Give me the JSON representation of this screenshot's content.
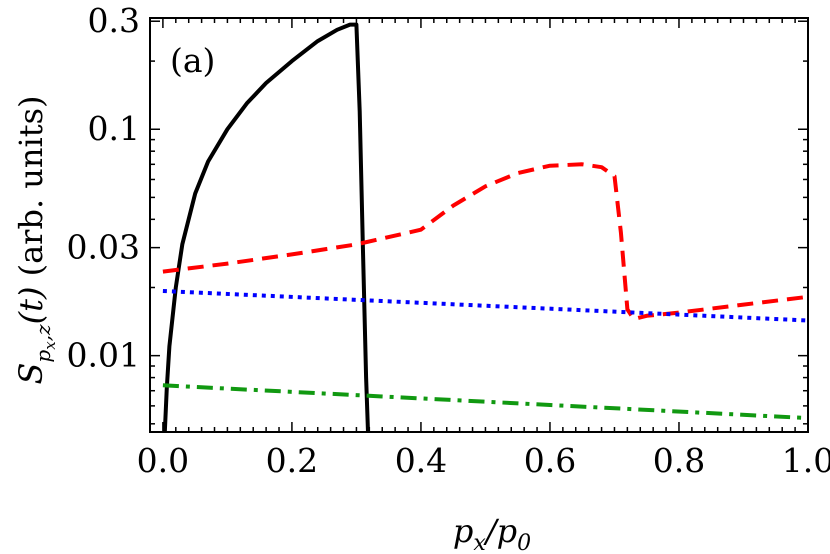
{
  "chart_data": {
    "type": "line",
    "panel_label": "(a)",
    "xlabel": "p_x/p_0",
    "ylabel": "S_{p_x,z}(t) (arb. units)",
    "xlim": [
      -0.02,
      1.0
    ],
    "ylim": [
      0.0046,
      0.31
    ],
    "yscale": "log",
    "xticks": [
      0.0,
      0.2,
      0.4,
      0.6,
      0.8,
      1.0
    ],
    "xtick_labels": [
      "0.0",
      "0.2",
      "0.4",
      "0.6",
      "0.8",
      "1.0"
    ],
    "yticks": [
      0.01,
      0.03,
      0.1,
      0.3
    ],
    "ytick_labels": [
      "0.01",
      "0.03",
      "0.1",
      "0.3"
    ],
    "series": [
      {
        "name": "solid-black",
        "color": "#000000",
        "style": "solid",
        "x": [
          0.003,
          0.006,
          0.01,
          0.02,
          0.03,
          0.05,
          0.07,
          0.1,
          0.13,
          0.16,
          0.2,
          0.24,
          0.27,
          0.29,
          0.3,
          0.305,
          0.31,
          0.315,
          0.318
        ],
        "y": [
          0.0046,
          0.0072,
          0.011,
          0.02,
          0.031,
          0.052,
          0.072,
          0.1,
          0.13,
          0.16,
          0.2,
          0.245,
          0.275,
          0.29,
          0.29,
          0.12,
          0.03,
          0.008,
          0.0046
        ]
      },
      {
        "name": "dashed-red",
        "color": "#ff0000",
        "style": "dashed",
        "x": [
          0.0,
          0.1,
          0.2,
          0.3,
          0.4,
          0.45,
          0.5,
          0.55,
          0.6,
          0.65,
          0.68,
          0.7,
          0.71,
          0.72,
          0.73,
          0.75,
          0.8,
          0.9,
          1.0
        ],
        "y": [
          0.0235,
          0.0255,
          0.028,
          0.031,
          0.036,
          0.046,
          0.056,
          0.064,
          0.069,
          0.07,
          0.068,
          0.062,
          0.035,
          0.016,
          0.0145,
          0.015,
          0.0155,
          0.0168,
          0.0182
        ]
      },
      {
        "name": "dotted-blue",
        "color": "#0000ff",
        "style": "dotted",
        "x": [
          0.0,
          1.0
        ],
        "y": [
          0.0193,
          0.0143
        ]
      },
      {
        "name": "dashdot-green",
        "color": "#119911",
        "style": "dashdot",
        "x": [
          0.0,
          1.0
        ],
        "y": [
          0.0074,
          0.0053
        ]
      }
    ]
  }
}
